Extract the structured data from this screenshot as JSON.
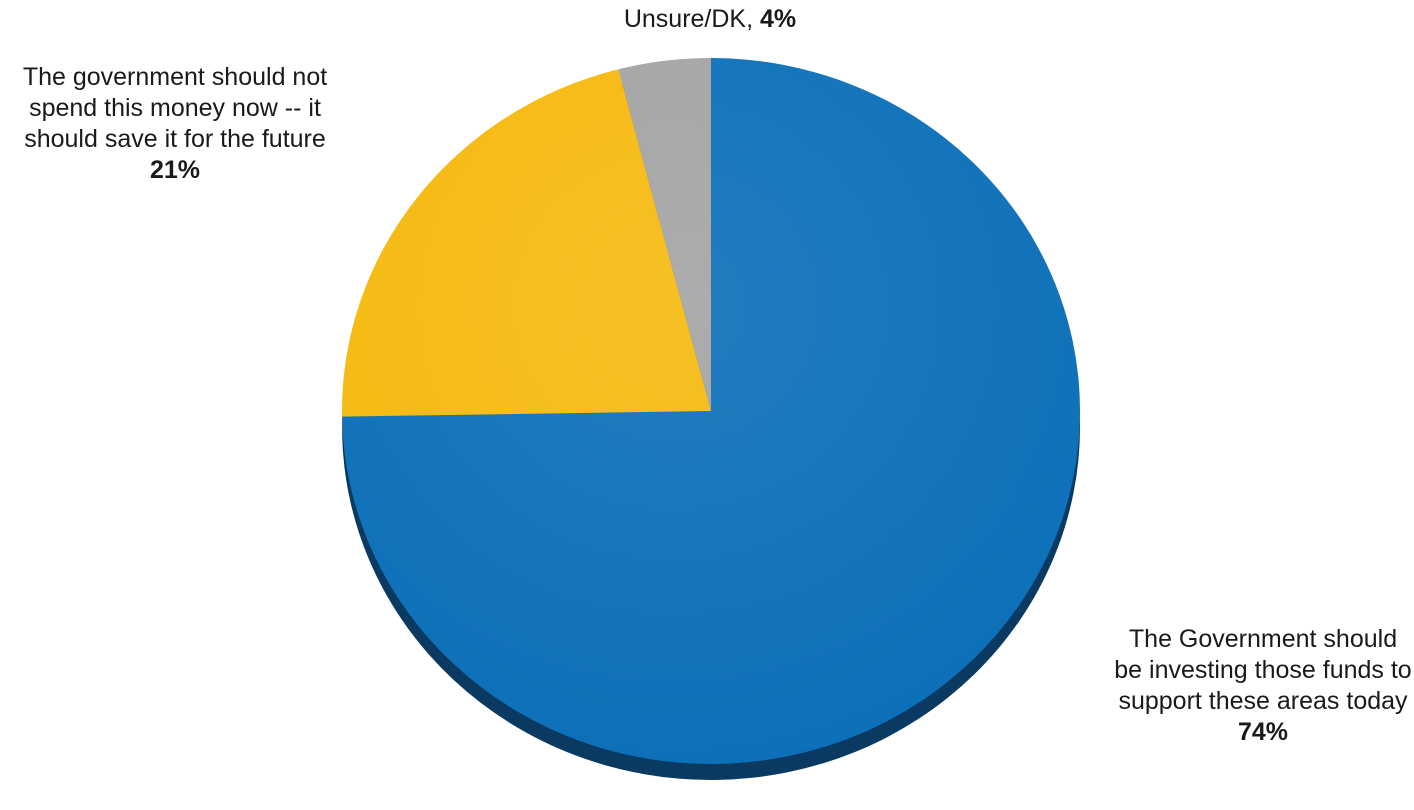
{
  "chart_data": {
    "type": "pie",
    "title": "",
    "start_angle_deg": 0,
    "direction": "clockwise",
    "slices": [
      {
        "label": "The Government should be investing those funds to support these areas today",
        "value": 74,
        "value_label": "74%",
        "color": "#0b6fb8",
        "shadow_color": "#0a3a62"
      },
      {
        "label": "The government should not spend this money now -- it should save it for the future",
        "value": 21,
        "value_label": "21%",
        "color": "#f5b90d",
        "shadow_color": "#7a5c06"
      },
      {
        "label": "Unsure/DK",
        "value": 4,
        "value_label": "4%",
        "color": "#a3a3a3",
        "shadow_color": "#555555"
      }
    ],
    "legend": "none"
  }
}
